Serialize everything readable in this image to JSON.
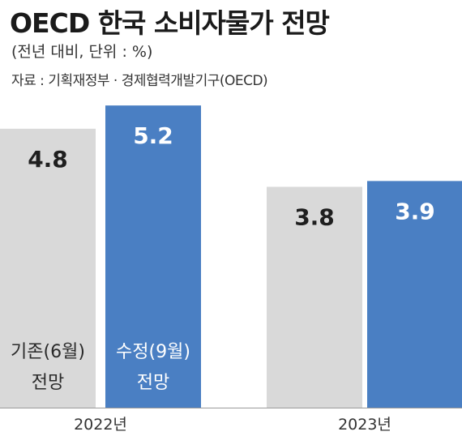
{
  "title": "OECD 한국 소비자물가 전망",
  "subtitle": "(전년 대비, 단위 : %)",
  "source": "자료 : 기획재정부 · 경제협력개발기구(OECD)",
  "colors": {
    "previous": "#d9d9d9",
    "revised": "#4a7fc3",
    "axis": "#9a9a9a"
  },
  "chart_data": {
    "type": "bar",
    "title": "OECD 한국 소비자물가 전망",
    "categories": [
      "2022년",
      "2023년"
    ],
    "series": [
      {
        "name": "기존(6월) 전망",
        "name_lines": [
          "기존(6월)",
          "전망"
        ],
        "values": [
          4.8,
          3.8
        ]
      },
      {
        "name": "수정(9월) 전망",
        "name_lines": [
          "수정(9월)",
          "전망"
        ],
        "values": [
          5.2,
          3.9
        ]
      }
    ],
    "data_labels": [
      [
        "4.8",
        "3.8"
      ],
      [
        "5.2",
        "3.9"
      ]
    ],
    "xlabel": "",
    "ylabel": "",
    "legend": "inside-bars",
    "grid": false
  }
}
